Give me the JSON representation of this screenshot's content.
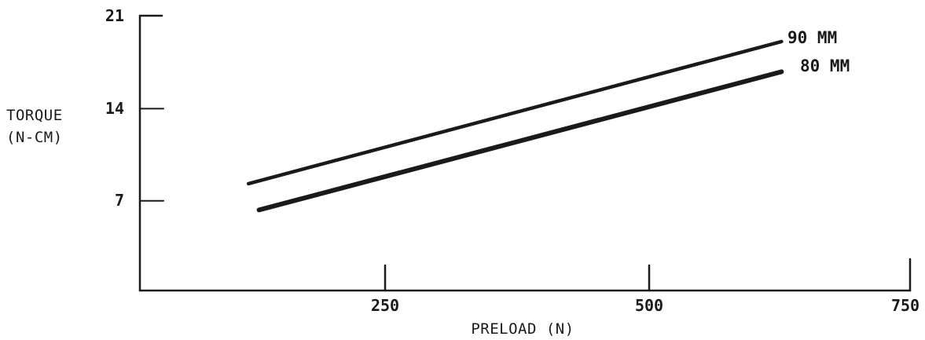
{
  "chart_data": {
    "type": "line",
    "title": "",
    "xlabel": "PRELOAD (N)",
    "ylabel": [
      "TORQUE",
      "(N-CM)"
    ],
    "xlim": [
      0,
      750
    ],
    "ylim": [
      0,
      21
    ],
    "x_ticks": [
      250,
      500,
      750
    ],
    "y_ticks": [
      7,
      14,
      21
    ],
    "grid": false,
    "legend": "inline-right",
    "series": [
      {
        "name": "90 MM",
        "x": [
          120,
          625
        ],
        "y": [
          8.3,
          19.1
        ]
      },
      {
        "name": "80 MM",
        "x": [
          130,
          625
        ],
        "y": [
          6.3,
          16.8
        ]
      }
    ]
  }
}
